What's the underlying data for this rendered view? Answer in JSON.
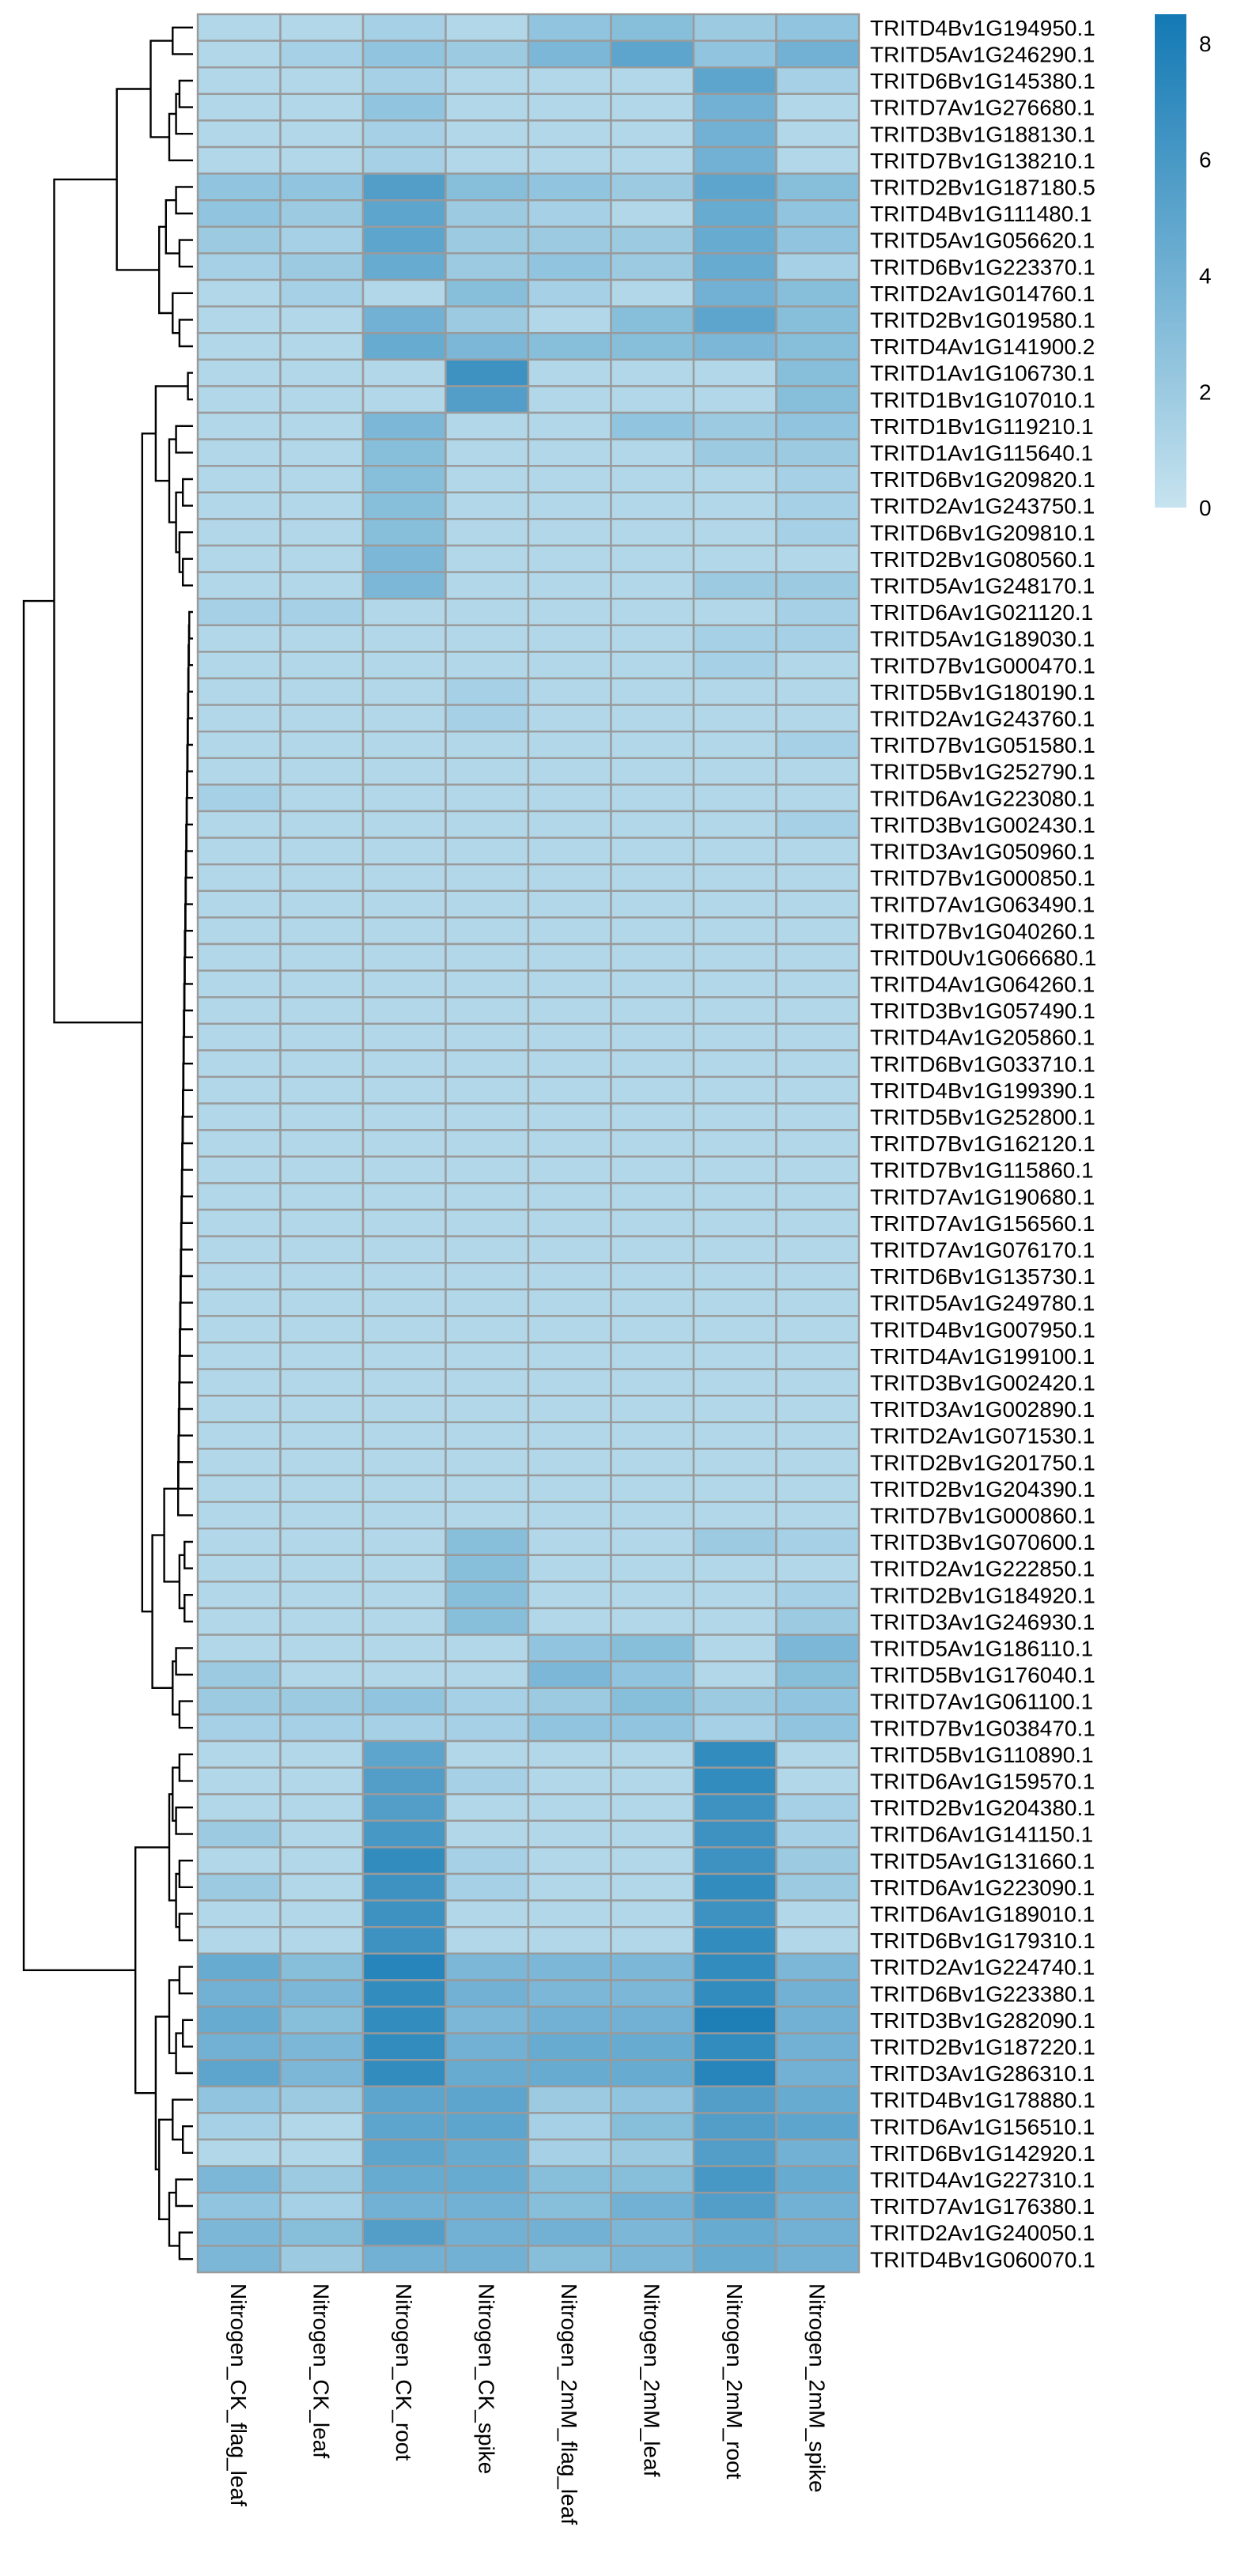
{
  "chart_data": {
    "type": "heatmap",
    "columns": [
      "Nitrogen_CK_flag_leaf",
      "Nitrogen_CK_leaf",
      "Nitrogen_CK_root",
      "Nitrogen_CK_spike",
      "Nitrogen_2mM_flag_leaf",
      "Nitrogen_2mM_leaf",
      "Nitrogen_2mM_root",
      "Nitrogen_2mM_spike"
    ],
    "rows": [
      "TRITD4Bv1G194950.1",
      "TRITD5Av1G246290.1",
      "TRITD6Bv1G145380.1",
      "TRITD7Av1G276680.1",
      "TRITD3Bv1G188130.1",
      "TRITD7Bv1G138210.1",
      "TRITD2Bv1G187180.5",
      "TRITD4Bv1G111480.1",
      "TRITD5Av1G056620.1",
      "TRITD6Bv1G223370.1",
      "TRITD2Av1G014760.1",
      "TRITD2Bv1G019580.1",
      "TRITD4Av1G141900.2",
      "TRITD1Av1G106730.1",
      "TRITD1Bv1G107010.1",
      "TRITD1Bv1G119210.1",
      "TRITD1Av1G115640.1",
      "TRITD6Bv1G209820.1",
      "TRITD2Av1G243750.1",
      "TRITD6Bv1G209810.1",
      "TRITD2Bv1G080560.1",
      "TRITD5Av1G248170.1",
      "TRITD6Av1G021120.1",
      "TRITD5Av1G189030.1",
      "TRITD7Bv1G000470.1",
      "TRITD5Bv1G180190.1",
      "TRITD2Av1G243760.1",
      "TRITD7Bv1G051580.1",
      "TRITD5Bv1G252790.1",
      "TRITD6Av1G223080.1",
      "TRITD3Bv1G002430.1",
      "TRITD3Av1G050960.1",
      "TRITD7Bv1G000850.1",
      "TRITD7Av1G063490.1",
      "TRITD7Bv1G040260.1",
      "TRITD0Uv1G066680.1",
      "TRITD4Av1G064260.1",
      "TRITD3Bv1G057490.1",
      "TRITD4Av1G205860.1",
      "TRITD6Bv1G033710.1",
      "TRITD4Bv1G199390.1",
      "TRITD5Bv1G252800.1",
      "TRITD7Bv1G162120.1",
      "TRITD7Bv1G115860.1",
      "TRITD7Av1G190680.1",
      "TRITD7Av1G156560.1",
      "TRITD7Av1G076170.1",
      "TRITD6Bv1G135730.1",
      "TRITD5Av1G249780.1",
      "TRITD4Bv1G007950.1",
      "TRITD4Av1G199100.1",
      "TRITD3Bv1G002420.1",
      "TRITD3Av1G002890.1",
      "TRITD2Av1G071530.1",
      "TRITD2Bv1G201750.1",
      "TRITD2Bv1G204390.1",
      "TRITD7Bv1G000860.1",
      "TRITD3Bv1G070600.1",
      "TRITD2Av1G222850.1",
      "TRITD2Bv1G184920.1",
      "TRITD3Av1G246930.1",
      "TRITD5Av1G186110.1",
      "TRITD5Bv1G176040.1",
      "TRITD7Av1G061100.1",
      "TRITD7Bv1G038470.1",
      "TRITD5Bv1G110890.1",
      "TRITD6Av1G159570.1",
      "TRITD2Bv1G204380.1",
      "TRITD6Av1G141150.1",
      "TRITD5Av1G131660.1",
      "TRITD6Av1G223090.1",
      "TRITD6Av1G189010.1",
      "TRITD6Bv1G179310.1",
      "TRITD2Av1G224740.1",
      "TRITD6Bv1G223380.1",
      "TRITD3Bv1G282090.1",
      "TRITD2Bv1G187220.1",
      "TRITD3Av1G286310.1",
      "TRITD4Bv1G178880.1",
      "TRITD6Av1G156510.1",
      "TRITD6Bv1G142920.1",
      "TRITD4Av1G227310.1",
      "TRITD7Av1G176380.1",
      "TRITD2Av1G240050.1",
      "TRITD4Bv1G060070.1"
    ],
    "values": [
      [
        1.0,
        1.0,
        1.5,
        1.0,
        2.5,
        3.0,
        2.0,
        2.5
      ],
      [
        1.0,
        1.5,
        2.5,
        2.0,
        3.5,
        5.0,
        2.5,
        4.0
      ],
      [
        1.0,
        1.0,
        1.5,
        1.0,
        1.0,
        1.0,
        5.0,
        1.5
      ],
      [
        1.0,
        1.0,
        2.5,
        1.0,
        1.0,
        1.0,
        4.0,
        1.0
      ],
      [
        1.0,
        1.0,
        1.5,
        1.0,
        1.0,
        1.0,
        4.0,
        1.0
      ],
      [
        1.0,
        1.0,
        1.5,
        1.0,
        1.0,
        1.0,
        4.0,
        1.0
      ],
      [
        2.5,
        2.5,
        5.5,
        3.0,
        2.5,
        2.0,
        5.0,
        3.0
      ],
      [
        2.5,
        2.0,
        5.0,
        2.0,
        1.5,
        1.0,
        4.5,
        2.5
      ],
      [
        2.0,
        1.5,
        5.0,
        2.0,
        2.0,
        2.0,
        4.5,
        2.5
      ],
      [
        1.5,
        2.0,
        4.5,
        2.0,
        2.5,
        2.0,
        4.5,
        1.5
      ],
      [
        1.0,
        1.5,
        1.0,
        3.0,
        1.5,
        1.0,
        4.0,
        3.0
      ],
      [
        1.0,
        1.0,
        4.0,
        2.0,
        1.0,
        3.0,
        5.0,
        3.0
      ],
      [
        1.0,
        1.0,
        4.5,
        3.5,
        3.0,
        3.0,
        3.5,
        3.0
      ],
      [
        1.0,
        1.0,
        1.0,
        6.5,
        1.0,
        1.0,
        1.0,
        3.0
      ],
      [
        1.0,
        1.0,
        1.0,
        5.5,
        1.0,
        1.0,
        1.0,
        3.0
      ],
      [
        1.0,
        1.0,
        3.5,
        1.0,
        1.0,
        2.5,
        2.0,
        2.5
      ],
      [
        1.0,
        1.0,
        3.0,
        1.0,
        1.0,
        1.0,
        2.0,
        2.0
      ],
      [
        1.0,
        1.0,
        3.0,
        1.0,
        1.0,
        1.0,
        1.0,
        1.5
      ],
      [
        1.0,
        1.0,
        3.0,
        1.0,
        1.0,
        1.0,
        1.0,
        1.5
      ],
      [
        1.0,
        1.0,
        3.0,
        1.0,
        1.0,
        1.0,
        1.0,
        1.5
      ],
      [
        1.0,
        1.0,
        3.5,
        1.0,
        1.0,
        1.0,
        1.0,
        1.0
      ],
      [
        1.0,
        1.0,
        3.5,
        1.0,
        1.0,
        1.0,
        2.0,
        2.0
      ],
      [
        1.5,
        1.5,
        1.0,
        1.0,
        1.0,
        1.0,
        1.0,
        1.5
      ],
      [
        1.0,
        1.0,
        1.0,
        1.0,
        1.0,
        1.0,
        1.5,
        1.5
      ],
      [
        1.0,
        1.0,
        1.0,
        1.0,
        1.0,
        1.0,
        1.5,
        1.0
      ],
      [
        1.0,
        1.0,
        1.0,
        1.5,
        1.0,
        1.0,
        1.0,
        1.0
      ],
      [
        1.0,
        1.0,
        1.0,
        1.5,
        1.0,
        1.0,
        1.0,
        1.0
      ],
      [
        1.0,
        1.0,
        1.0,
        1.0,
        1.0,
        1.0,
        1.0,
        1.5
      ],
      [
        1.0,
        1.0,
        1.0,
        1.0,
        1.0,
        1.0,
        1.0,
        1.0
      ],
      [
        1.5,
        1.0,
        1.0,
        1.0,
        1.0,
        1.0,
        1.0,
        1.0
      ],
      [
        1.0,
        1.0,
        1.0,
        1.0,
        1.0,
        1.0,
        1.0,
        1.5
      ],
      [
        1.0,
        1.0,
        1.0,
        1.0,
        1.0,
        1.0,
        1.0,
        1.0
      ],
      [
        1.0,
        1.0,
        1.0,
        1.0,
        1.0,
        1.0,
        1.0,
        1.0
      ],
      [
        1.0,
        1.0,
        1.0,
        1.0,
        1.0,
        1.0,
        1.0,
        1.0
      ],
      [
        1.0,
        1.0,
        1.0,
        1.0,
        1.0,
        1.0,
        1.0,
        1.0
      ],
      [
        1.0,
        1.0,
        1.0,
        1.0,
        1.0,
        1.0,
        1.0,
        1.0
      ],
      [
        1.0,
        1.0,
        1.0,
        1.0,
        1.0,
        1.0,
        1.0,
        1.0
      ],
      [
        1.0,
        1.0,
        1.0,
        1.0,
        1.0,
        1.0,
        1.0,
        1.0
      ],
      [
        1.0,
        1.0,
        1.0,
        1.0,
        1.0,
        1.0,
        1.0,
        1.0
      ],
      [
        1.0,
        1.0,
        1.0,
        1.0,
        1.0,
        1.0,
        1.0,
        1.0
      ],
      [
        1.0,
        1.0,
        1.0,
        1.0,
        1.0,
        1.0,
        1.0,
        1.0
      ],
      [
        1.0,
        1.0,
        1.0,
        1.0,
        1.0,
        1.0,
        1.0,
        1.0
      ],
      [
        1.0,
        1.0,
        1.0,
        1.0,
        1.0,
        1.0,
        1.0,
        1.0
      ],
      [
        1.0,
        1.0,
        1.0,
        1.0,
        1.0,
        1.0,
        1.0,
        1.0
      ],
      [
        1.0,
        1.0,
        1.0,
        1.0,
        1.0,
        1.0,
        1.0,
        1.0
      ],
      [
        1.0,
        1.0,
        1.0,
        1.0,
        1.0,
        1.0,
        1.0,
        1.0
      ],
      [
        1.0,
        1.0,
        1.0,
        1.0,
        1.0,
        1.0,
        1.0,
        1.0
      ],
      [
        1.0,
        1.0,
        1.0,
        1.0,
        1.0,
        1.0,
        1.0,
        1.0
      ],
      [
        1.0,
        1.0,
        1.0,
        1.0,
        1.0,
        1.0,
        1.0,
        1.0
      ],
      [
        1.0,
        1.0,
        1.0,
        1.0,
        1.0,
        1.0,
        1.0,
        1.0
      ],
      [
        1.0,
        1.0,
        1.0,
        1.0,
        1.0,
        1.0,
        1.0,
        1.0
      ],
      [
        1.0,
        1.0,
        1.0,
        1.0,
        1.0,
        1.0,
        1.0,
        1.0
      ],
      [
        1.0,
        1.0,
        1.0,
        1.0,
        1.0,
        1.0,
        1.0,
        1.0
      ],
      [
        1.0,
        1.0,
        1.0,
        1.0,
        1.0,
        1.0,
        1.0,
        1.0
      ],
      [
        1.0,
        1.0,
        1.0,
        1.0,
        1.0,
        1.0,
        1.0,
        1.0
      ],
      [
        1.0,
        1.0,
        1.0,
        1.0,
        1.0,
        1.0,
        1.0,
        1.0
      ],
      [
        1.0,
        1.0,
        1.0,
        1.0,
        1.0,
        1.0,
        1.0,
        1.0
      ],
      [
        1.0,
        1.0,
        1.0,
        3.0,
        1.0,
        1.0,
        2.0,
        1.5
      ],
      [
        1.0,
        1.0,
        1.0,
        3.0,
        1.0,
        1.0,
        1.0,
        1.0
      ],
      [
        1.0,
        1.0,
        1.0,
        3.0,
        1.0,
        1.0,
        1.0,
        1.5
      ],
      [
        1.0,
        1.0,
        1.0,
        3.0,
        1.0,
        1.0,
        1.0,
        2.0
      ],
      [
        1.0,
        1.0,
        1.0,
        1.0,
        2.5,
        3.0,
        1.0,
        3.5
      ],
      [
        2.0,
        1.0,
        1.0,
        1.0,
        3.5,
        2.5,
        1.0,
        3.0
      ],
      [
        2.0,
        2.0,
        2.5,
        1.5,
        2.0,
        3.0,
        2.0,
        2.5
      ],
      [
        1.5,
        1.5,
        1.5,
        1.5,
        2.5,
        2.5,
        1.5,
        2.5
      ],
      [
        1.0,
        1.0,
        5.0,
        1.0,
        1.0,
        1.0,
        7.0,
        1.0
      ],
      [
        1.0,
        1.0,
        5.5,
        1.5,
        1.0,
        1.0,
        7.0,
        1.0
      ],
      [
        1.0,
        1.0,
        5.5,
        1.0,
        1.0,
        1.0,
        6.5,
        1.5
      ],
      [
        2.0,
        1.0,
        6.0,
        1.0,
        1.0,
        1.0,
        6.5,
        1.5
      ],
      [
        1.0,
        1.0,
        7.0,
        1.5,
        1.0,
        1.0,
        6.5,
        2.0
      ],
      [
        2.0,
        1.0,
        6.5,
        1.5,
        1.0,
        1.0,
        7.0,
        2.0
      ],
      [
        1.0,
        1.0,
        6.5,
        1.0,
        1.0,
        1.0,
        6.5,
        1.0
      ],
      [
        1.0,
        1.0,
        6.5,
        1.0,
        1.0,
        1.0,
        7.0,
        1.0
      ],
      [
        4.5,
        3.0,
        7.5,
        3.5,
        3.5,
        3.5,
        7.0,
        3.5
      ],
      [
        4.0,
        3.5,
        7.0,
        4.0,
        3.5,
        3.5,
        7.0,
        4.0
      ],
      [
        4.5,
        3.0,
        7.0,
        3.5,
        4.0,
        4.0,
        8.0,
        4.0
      ],
      [
        4.0,
        3.5,
        7.0,
        4.0,
        4.5,
        4.5,
        7.0,
        4.0
      ],
      [
        5.0,
        3.5,
        7.0,
        4.5,
        4.5,
        4.5,
        7.5,
        4.0
      ],
      [
        2.5,
        2.0,
        5.0,
        5.0,
        2.0,
        2.5,
        5.5,
        4.5
      ],
      [
        1.5,
        1.0,
        5.0,
        5.0,
        1.5,
        3.0,
        5.5,
        5.0
      ],
      [
        1.0,
        1.0,
        5.0,
        4.5,
        1.5,
        2.0,
        5.5,
        4.0
      ],
      [
        3.5,
        2.0,
        4.5,
        4.5,
        3.0,
        3.0,
        6.0,
        4.5
      ],
      [
        2.5,
        1.5,
        4.0,
        4.0,
        3.0,
        4.0,
        5.5,
        4.0
      ],
      [
        3.5,
        3.0,
        5.5,
        4.0,
        4.0,
        3.5,
        4.5,
        4.0
      ],
      [
        3.5,
        2.0,
        4.0,
        4.0,
        3.0,
        3.5,
        4.5,
        4.0
      ]
    ],
    "color_scale": {
      "min": 0,
      "max": 8.5,
      "low_color": "#c6e3ef",
      "high_color": "#1379b4",
      "ticks": [
        0,
        2,
        4,
        6,
        8
      ]
    },
    "cell_border_color": "#9a9a9a",
    "dendrogram_color": "#000000"
  }
}
